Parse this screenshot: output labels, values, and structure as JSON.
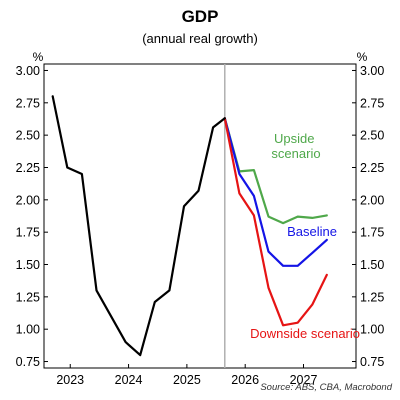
{
  "title": "GDP",
  "subtitle": "(annual real growth)",
  "source": "Source: ABS, CBA, Macrobond",
  "colors": {
    "actual": "#000000",
    "upside": "#4fa84a",
    "baseline": "#1414e6",
    "downside": "#e61414",
    "divider": "#b0b0b0",
    "frame": "#000000"
  },
  "chart_data": {
    "type": "line",
    "title": "GDP",
    "subtitle": "(annual real growth)",
    "y_unit_left": "%",
    "y_unit_right": "%",
    "xlabel": "",
    "ylabel": "",
    "ylim": [
      0.7,
      3.05
    ],
    "xlim": [
      2022.55,
      2027.9
    ],
    "y_ticks": [
      "3.00",
      "2.75",
      "2.50",
      "2.25",
      "2.00",
      "1.75",
      "1.50",
      "1.25",
      "1.00",
      "0.75"
    ],
    "x_ticks": [
      {
        "label": "2023",
        "x": 2023.0
      },
      {
        "label": "2024",
        "x": 2024.0
      },
      {
        "label": "2025",
        "x": 2025.0
      },
      {
        "label": "2026",
        "x": 2026.0
      },
      {
        "label": "2027",
        "x": 2027.0
      }
    ],
    "divider_x": 2025.65,
    "grid": false,
    "series": [
      {
        "key": "actual",
        "x": [
          2022.7,
          2022.95,
          2023.2,
          2023.45,
          2023.7,
          2023.95,
          2024.2,
          2024.45,
          2024.7,
          2024.95,
          2025.2,
          2025.45,
          2025.65
        ],
        "y": [
          2.8,
          2.25,
          2.2,
          1.3,
          1.1,
          0.9,
          0.8,
          1.21,
          1.3,
          1.95,
          2.07,
          2.56,
          2.63
        ]
      },
      {
        "key": "upside",
        "name": "Upside scenario",
        "label_lines": [
          "Upside",
          "scenario"
        ],
        "x": [
          2025.65,
          2025.9,
          2026.15,
          2026.4,
          2026.65,
          2026.9,
          2027.15,
          2027.4
        ],
        "y": [
          2.63,
          2.22,
          2.23,
          1.87,
          1.82,
          1.87,
          1.86,
          1.88
        ]
      },
      {
        "key": "baseline",
        "name": "Baseline",
        "label_lines": [
          "Baseline"
        ],
        "x": [
          2025.65,
          2025.9,
          2026.15,
          2026.4,
          2026.65,
          2026.9,
          2027.15,
          2027.4
        ],
        "y": [
          2.63,
          2.2,
          2.03,
          1.6,
          1.49,
          1.49,
          1.59,
          1.69
        ]
      },
      {
        "key": "downside",
        "name": "Downside scenario",
        "label_lines": [
          "Downside scenario"
        ],
        "x": [
          2025.65,
          2025.9,
          2026.15,
          2026.4,
          2026.65,
          2026.9,
          2027.15,
          2027.4
        ],
        "y": [
          2.63,
          2.05,
          1.88,
          1.32,
          1.03,
          1.05,
          1.19,
          1.42
        ]
      }
    ]
  }
}
